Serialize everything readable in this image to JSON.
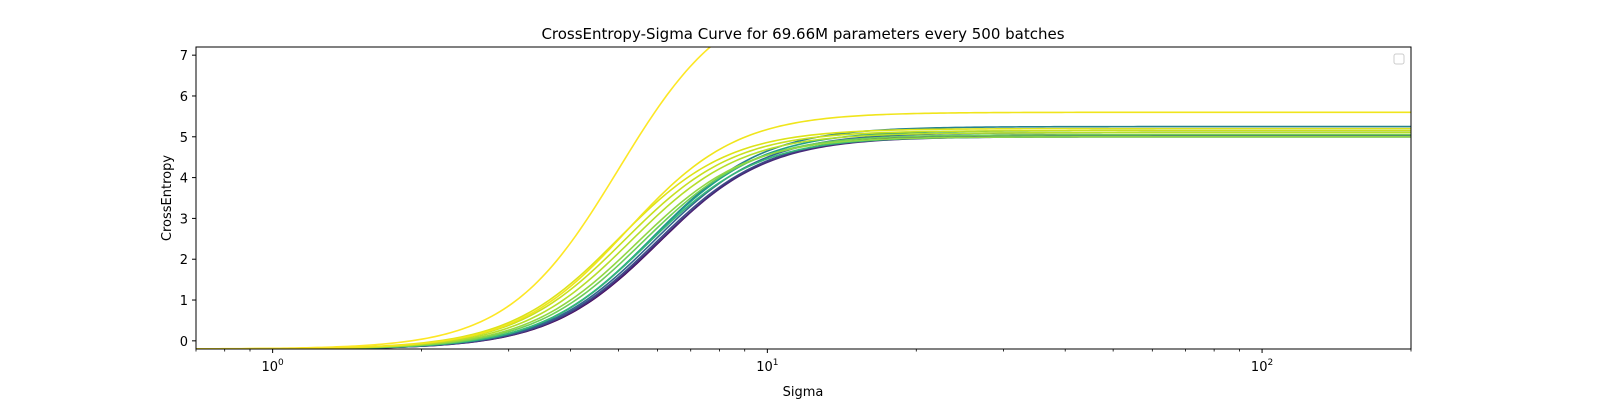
{
  "chart_data": {
    "type": "line",
    "title": "CrossEntropy-Sigma Curve for 69.66M parameters every 500 batches",
    "xlabel": "Sigma",
    "ylabel": "CrossEntropy",
    "xscale": "log",
    "xlim": [
      0.7,
      200
    ],
    "ylim": [
      -0.2,
      7.2
    ],
    "xticks": [
      {
        "value": 1,
        "label_base": "10",
        "label_exp": "0"
      },
      {
        "value": 10,
        "label_base": "10",
        "label_exp": "1"
      },
      {
        "value": 100,
        "label_base": "10",
        "label_exp": "2"
      }
    ],
    "yticks": [
      0,
      1,
      2,
      3,
      4,
      5,
      6,
      7
    ],
    "grid": false,
    "legend": "top-right",
    "legend_entries": [],
    "colormap": "viridis",
    "series": [
      {
        "color": "#440154",
        "plateau": 5.05,
        "midpoint": 6.05,
        "steepness": 3.9
      },
      {
        "color": "#482878",
        "plateau": 5.0,
        "midpoint": 6.0,
        "steepness": 3.9
      },
      {
        "color": "#3e4a89",
        "plateau": 5.02,
        "midpoint": 5.95,
        "steepness": 3.9
      },
      {
        "color": "#31688e",
        "plateau": 5.1,
        "midpoint": 5.9,
        "steepness": 3.9
      },
      {
        "color": "#26828e",
        "plateau": 5.25,
        "midpoint": 5.85,
        "steepness": 3.9
      },
      {
        "color": "#1f9e89",
        "plateau": 5.15,
        "midpoint": 5.8,
        "steepness": 3.9
      },
      {
        "color": "#35b779",
        "plateau": 5.0,
        "midpoint": 5.75,
        "steepness": 3.9
      },
      {
        "color": "#6ece58",
        "plateau": 5.05,
        "midpoint": 5.6,
        "steepness": 3.9
      },
      {
        "color": "#90d743",
        "plateau": 5.0,
        "midpoint": 5.45,
        "steepness": 3.9
      },
      {
        "color": "#b5de2b",
        "plateau": 5.1,
        "midpoint": 5.3,
        "steepness": 3.9
      },
      {
        "color": "#c8e020",
        "plateau": 5.15,
        "midpoint": 5.15,
        "steepness": 3.9
      },
      {
        "color": "#dde318",
        "plateau": 5.2,
        "midpoint": 5.0,
        "steepness": 3.9
      },
      {
        "color": "#f0e51c",
        "plateau": 5.6,
        "midpoint": 5.2,
        "steepness": 3.9
      },
      {
        "color": "#fde725",
        "plateau": 8.6,
        "midpoint": 5.0,
        "steepness": 3.9
      }
    ]
  }
}
